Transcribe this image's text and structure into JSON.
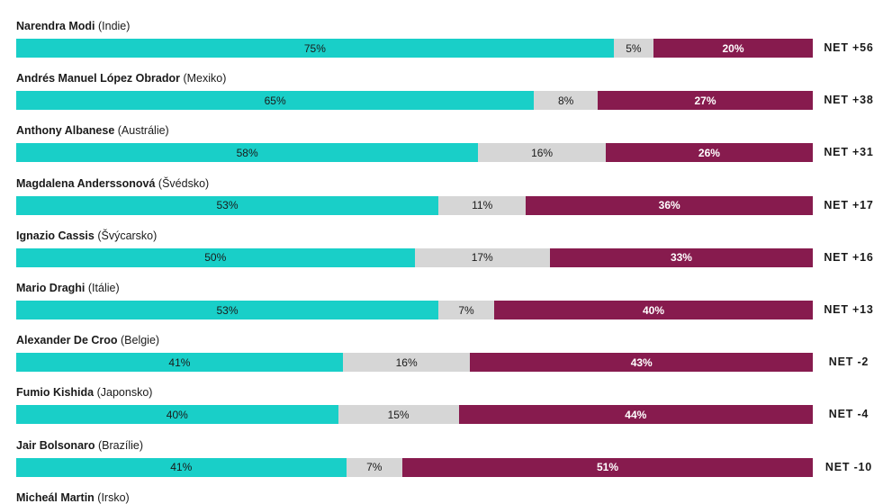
{
  "chart_data": {
    "type": "bar",
    "stacked": true,
    "orientation": "horizontal",
    "colors": {
      "approve": "#19cfc8",
      "neutral": "#d6d6d6",
      "disapprove": "#871b4e"
    },
    "rows": [
      {
        "name": "Narendra Modi",
        "country": "(Indie)",
        "approve": 75,
        "neutral": 5,
        "disapprove": 20,
        "approve_label": "75%",
        "neutral_label": "5%",
        "disapprove_label": "20%",
        "net": "NET +56"
      },
      {
        "name": "Andrés Manuel López Obrador",
        "country": "(Mexiko)",
        "approve": 65,
        "neutral": 8,
        "disapprove": 27,
        "approve_label": "65%",
        "neutral_label": "8%",
        "disapprove_label": "27%",
        "net": "NET +38"
      },
      {
        "name": "Anthony Albanese",
        "country": "(Austrálie)",
        "approve": 58,
        "neutral": 16,
        "disapprove": 26,
        "approve_label": "58%",
        "neutral_label": "16%",
        "disapprove_label": "26%",
        "net": "NET +31"
      },
      {
        "name": "Magdalena Anderssonová",
        "country": "(Švédsko)",
        "approve": 53,
        "neutral": 11,
        "disapprove": 36,
        "approve_label": "53%",
        "neutral_label": "11%",
        "disapprove_label": "36%",
        "net": "NET +17"
      },
      {
        "name": "Ignazio Cassis",
        "country": "(Švýcarsko)",
        "approve": 50,
        "neutral": 17,
        "disapprove": 33,
        "approve_label": "50%",
        "neutral_label": "17%",
        "disapprove_label": "33%",
        "net": "NET +16"
      },
      {
        "name": "Mario Draghi",
        "country": "(Itálie)",
        "approve": 53,
        "neutral": 7,
        "disapprove": 40,
        "approve_label": "53%",
        "neutral_label": "7%",
        "disapprove_label": "40%",
        "net": "NET +13"
      },
      {
        "name": "Alexander De Croo",
        "country": "(Belgie)",
        "approve": 41,
        "neutral": 16,
        "disapprove": 43,
        "approve_label": "41%",
        "neutral_label": "16%",
        "disapprove_label": "43%",
        "net": "NET -2"
      },
      {
        "name": "Fumio Kishida",
        "country": "(Japonsko)",
        "approve": 40,
        "neutral": 15,
        "disapprove": 44,
        "approve_label": "40%",
        "neutral_label": "15%",
        "disapprove_label": "44%",
        "net": "NET -4"
      },
      {
        "name": "Jair Bolsonaro",
        "country": "(Brazílie)",
        "approve": 41,
        "neutral": 7,
        "disapprove": 51,
        "approve_label": "41%",
        "neutral_label": "7%",
        "disapprove_label": "51%",
        "net": "NET -10"
      },
      {
        "name": "Micheál Martin",
        "country": "(Irsko)"
      }
    ]
  }
}
